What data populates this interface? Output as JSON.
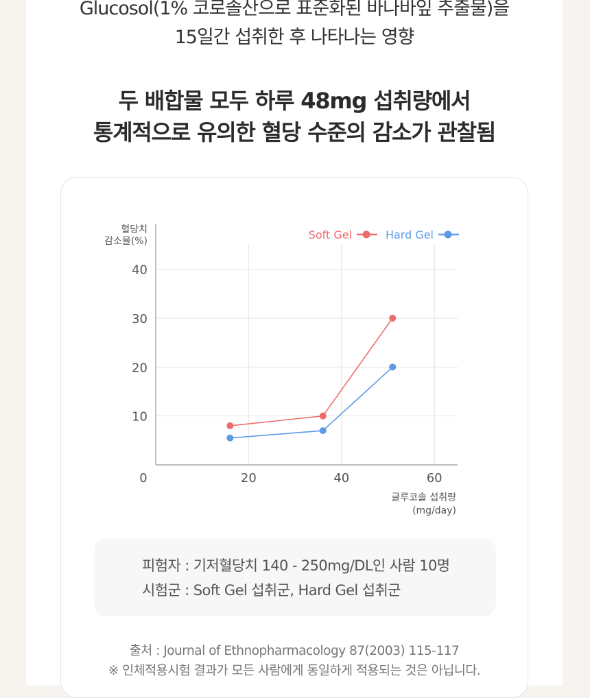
{
  "intro": {
    "line1": "Glucosol(1% 코로솔산으로 표준화된 바나바잎 추출물)을",
    "line2": "15일간 섭취한 후 나타나는 영향"
  },
  "headline": {
    "line1": "두 배합물 모두 하루 48mg 섭취량에서",
    "line2": "통계적으로 유의한 혈당 수준의 감소가 관찰됨"
  },
  "info": {
    "subjects": "피험자 : 기저혈당치 140 - 250mg/DL인 사람 10명",
    "groups": "시험군 : Soft Gel 섭취군, Hard Gel 섭취군"
  },
  "source": {
    "citation": "출처 : Journal of Ethnopharmacology 87(2003) 115-117",
    "disclaimer": "※ 인체적용시험 결과가 모든 사람에게 동일하게 적용되는 것은 아닙니다."
  },
  "colors": {
    "soft_gel": "#ee6b6b",
    "hard_gel": "#5f9ae6"
  },
  "chart_data": {
    "type": "line",
    "ylabel_line1": "혈당치",
    "ylabel_line2": "감소율(%)",
    "xlabel_line1": "글루코솔 섭취량",
    "xlabel_line2": "(mg/day)",
    "xlim": [
      0,
      65
    ],
    "ylim": [
      0,
      45
    ],
    "xticks": [
      0,
      20,
      40,
      60
    ],
    "yticks": [
      10,
      20,
      30,
      40
    ],
    "grid": true,
    "legend_position": "top-right",
    "series": [
      {
        "name": "Soft Gel",
        "color": "#ee6b6b",
        "x": [
          16,
          36,
          51
        ],
        "y": [
          8,
          10,
          30
        ]
      },
      {
        "name": "Hard Gel",
        "color": "#5f9ae6",
        "x": [
          16,
          36,
          51
        ],
        "y": [
          5.5,
          7,
          20
        ]
      }
    ]
  }
}
